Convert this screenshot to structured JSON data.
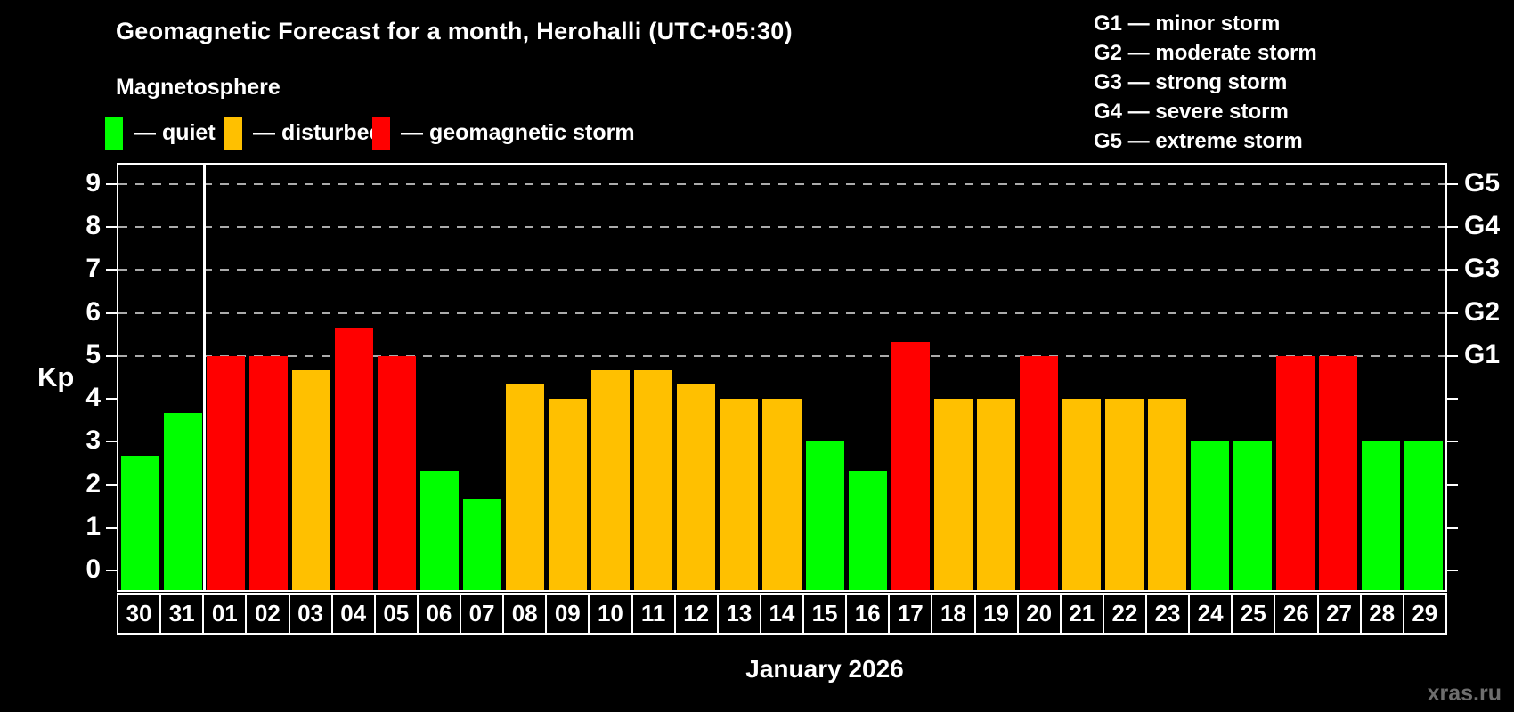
{
  "header": {
    "title": "Geomagnetic Forecast for a month, Herohalli (UTC+05:30)",
    "subtitle": "Magnetosphere"
  },
  "legend": {
    "items": [
      {
        "key": "quiet",
        "label": "— quiet",
        "color": "#00ff00"
      },
      {
        "key": "disturbed",
        "label": "— disturbed",
        "color": "#ffc000"
      },
      {
        "key": "storm",
        "label": "— geomagnetic storm",
        "color": "#ff0000"
      }
    ]
  },
  "g_legend": {
    "items": [
      {
        "label": "G1 — minor storm"
      },
      {
        "label": "G2 — moderate storm"
      },
      {
        "label": "G3 — strong storm"
      },
      {
        "label": "G4 — severe storm"
      },
      {
        "label": "G5 — extreme storm"
      }
    ]
  },
  "chart_data": {
    "type": "bar",
    "title": "Geomagnetic Forecast for a month, Herohalli (UTC+05:30)",
    "ylabel": "Kp",
    "xlabel": "January 2026",
    "categories": [
      "30",
      "31",
      "01",
      "02",
      "03",
      "04",
      "05",
      "06",
      "07",
      "08",
      "09",
      "10",
      "11",
      "12",
      "13",
      "14",
      "15",
      "16",
      "17",
      "18",
      "19",
      "20",
      "21",
      "22",
      "23",
      "24",
      "25",
      "26",
      "27",
      "28",
      "29"
    ],
    "values": [
      2.67,
      3.67,
      5,
      5,
      4.67,
      5.67,
      5,
      2.33,
      1.67,
      4.33,
      4,
      4.67,
      4.67,
      4.33,
      4,
      4,
      3,
      2.33,
      5.33,
      4,
      4,
      5,
      4,
      4,
      4,
      3,
      3,
      5,
      5,
      3,
      3
    ],
    "states": [
      "quiet",
      "quiet",
      "storm",
      "storm",
      "disturbed",
      "storm",
      "storm",
      "quiet",
      "quiet",
      "disturbed",
      "disturbed",
      "disturbed",
      "disturbed",
      "disturbed",
      "disturbed",
      "disturbed",
      "quiet",
      "quiet",
      "storm",
      "disturbed",
      "disturbed",
      "storm",
      "disturbed",
      "disturbed",
      "disturbed",
      "quiet",
      "quiet",
      "storm",
      "storm",
      "quiet",
      "quiet"
    ],
    "state_colors": {
      "quiet": "#00ff00",
      "disturbed": "#ffc000",
      "storm": "#ff0000"
    },
    "ylim": [
      0,
      9
    ],
    "yticks": [
      0,
      1,
      2,
      3,
      4,
      5,
      6,
      7,
      8,
      9
    ],
    "gridline_values": [
      5,
      6,
      7,
      8,
      9
    ],
    "right_labels": [
      {
        "value": 5,
        "label": "G1"
      },
      {
        "value": 6,
        "label": "G2"
      },
      {
        "value": 7,
        "label": "G3"
      },
      {
        "value": 8,
        "label": "G4"
      },
      {
        "value": 9,
        "label": "G5"
      }
    ],
    "month_separator_after": "31",
    "grid": "horizontal dashed lines at Kp 5–9",
    "legend_position": "top-left"
  },
  "footer": {
    "month_label": "January 2026",
    "watermark": "xras.ru"
  }
}
